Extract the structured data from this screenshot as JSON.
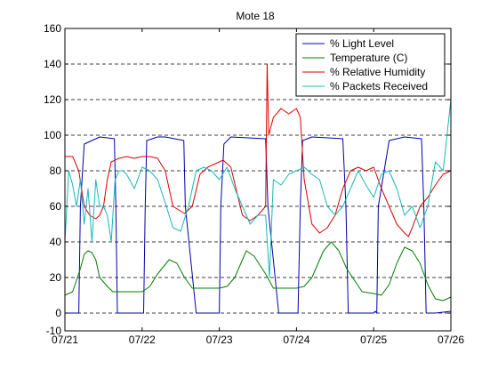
{
  "chart_data": {
    "type": "line",
    "title": "Mote 18",
    "xlabel": "",
    "ylabel": "",
    "xlim": [
      0,
      5
    ],
    "ylim": [
      -10,
      160
    ],
    "x_ticks": [
      {
        "value": 0,
        "label": "07/21"
      },
      {
        "value": 1,
        "label": "07/22"
      },
      {
        "value": 2,
        "label": "07/23"
      },
      {
        "value": 3,
        "label": "07/24"
      },
      {
        "value": 4,
        "label": "07/25"
      },
      {
        "value": 5,
        "label": "07/26"
      }
    ],
    "y_ticks": [
      -10,
      0,
      20,
      40,
      60,
      80,
      100,
      120,
      140,
      160
    ],
    "grid": "dashed horizontal",
    "legend_position": "top-right",
    "series": [
      {
        "name": "% Light Level",
        "color": "#0000aa",
        "x": [
          0.0,
          0.18,
          0.2,
          0.25,
          0.45,
          0.64,
          0.66,
          0.68,
          1.02,
          1.04,
          1.06,
          1.2,
          1.3,
          1.54,
          1.56,
          1.7,
          1.8,
          2.0,
          2.02,
          2.06,
          2.15,
          2.6,
          2.63,
          2.77,
          2.9,
          3.02,
          3.05,
          3.08,
          3.2,
          3.6,
          3.64,
          3.67,
          3.8,
          4.0,
          4.02,
          4.04,
          4.06,
          4.2,
          4.4,
          4.62,
          4.65,
          4.68,
          4.8,
          5.0
        ],
        "y": [
          0,
          0,
          60,
          95,
          99,
          98,
          60,
          0,
          0,
          60,
          97,
          99,
          99,
          97,
          60,
          0,
          0,
          0,
          60,
          95,
          99,
          98,
          60,
          0,
          0,
          0,
          60,
          97,
          99,
          98,
          60,
          0,
          0,
          0,
          1,
          0,
          60,
          97,
          99,
          98,
          60,
          0,
          0,
          1
        ]
      },
      {
        "name": "Temperature (C)",
        "color": "#008000",
        "x": [
          0.0,
          0.1,
          0.2,
          0.25,
          0.3,
          0.35,
          0.4,
          0.45,
          0.55,
          0.62,
          0.7,
          0.9,
          1.0,
          1.1,
          1.2,
          1.35,
          1.45,
          1.55,
          1.65,
          2.0,
          2.1,
          2.2,
          2.28,
          2.35,
          2.45,
          2.6,
          2.7,
          2.9,
          3.0,
          3.1,
          3.2,
          3.35,
          3.45,
          3.55,
          3.65,
          3.85,
          4.0,
          4.1,
          4.2,
          4.3,
          4.4,
          4.5,
          4.6,
          4.7,
          4.8,
          4.9,
          5.0
        ],
        "y": [
          10,
          12,
          25,
          33,
          35,
          34,
          30,
          20,
          15,
          12,
          12,
          12,
          12,
          15,
          22,
          30,
          28,
          20,
          14,
          14,
          15,
          20,
          28,
          35,
          32,
          22,
          14,
          14,
          14,
          15,
          20,
          35,
          40,
          35,
          25,
          12,
          11,
          10,
          16,
          28,
          37,
          35,
          28,
          16,
          8,
          7,
          9
        ]
      },
      {
        "name": "% Relative Humidity",
        "color": "#dd0000",
        "x": [
          0.0,
          0.1,
          0.18,
          0.25,
          0.32,
          0.4,
          0.45,
          0.5,
          0.55,
          0.6,
          0.7,
          0.8,
          0.9,
          1.0,
          1.1,
          1.2,
          1.3,
          1.4,
          1.55,
          1.65,
          1.75,
          1.85,
          1.95,
          2.05,
          2.15,
          2.3,
          2.4,
          2.5,
          2.6,
          2.62,
          2.64,
          2.7,
          2.8,
          2.9,
          3.0,
          3.05,
          3.1,
          3.2,
          3.3,
          3.4,
          3.5,
          3.6,
          3.7,
          3.8,
          3.9,
          4.0,
          4.1,
          4.2,
          4.3,
          4.4,
          4.45,
          4.5,
          4.6,
          4.7,
          4.8,
          4.9,
          5.0
        ],
        "y": [
          88,
          88,
          80,
          60,
          55,
          53,
          55,
          60,
          75,
          85,
          87,
          88,
          87,
          88,
          88,
          87,
          80,
          60,
          56,
          60,
          78,
          82,
          84,
          86,
          82,
          55,
          52,
          55,
          60,
          140,
          100,
          110,
          115,
          112,
          115,
          110,
          75,
          50,
          45,
          48,
          55,
          70,
          80,
          82,
          80,
          82,
          70,
          60,
          50,
          45,
          43,
          48,
          60,
          65,
          72,
          78,
          80
        ]
      },
      {
        "name": "% Packets Received",
        "color": "#17b8b8",
        "x": [
          0.0,
          0.05,
          0.1,
          0.15,
          0.2,
          0.25,
          0.3,
          0.35,
          0.4,
          0.45,
          0.5,
          0.55,
          0.6,
          0.65,
          0.7,
          0.75,
          0.8,
          0.9,
          1.0,
          1.1,
          1.2,
          1.3,
          1.4,
          1.5,
          1.6,
          1.7,
          1.8,
          1.9,
          2.0,
          2.1,
          2.2,
          2.3,
          2.4,
          2.5,
          2.6,
          2.65,
          2.7,
          2.8,
          2.9,
          3.0,
          3.1,
          3.2,
          3.3,
          3.4,
          3.5,
          3.6,
          3.7,
          3.8,
          3.9,
          4.0,
          4.1,
          4.2,
          4.3,
          4.4,
          4.5,
          4.6,
          4.7,
          4.8,
          4.9,
          5.0
        ],
        "y": [
          40,
          80,
          72,
          60,
          75,
          50,
          70,
          40,
          75,
          60,
          60,
          55,
          40,
          75,
          80,
          80,
          78,
          70,
          82,
          80,
          75,
          62,
          48,
          46,
          60,
          80,
          82,
          80,
          75,
          82,
          70,
          60,
          50,
          55,
          55,
          20,
          75,
          72,
          78,
          80,
          82,
          78,
          75,
          60,
          55,
          60,
          70,
          80,
          72,
          65,
          78,
          80,
          70,
          55,
          60,
          48,
          60,
          85,
          80,
          120
        ]
      }
    ]
  }
}
